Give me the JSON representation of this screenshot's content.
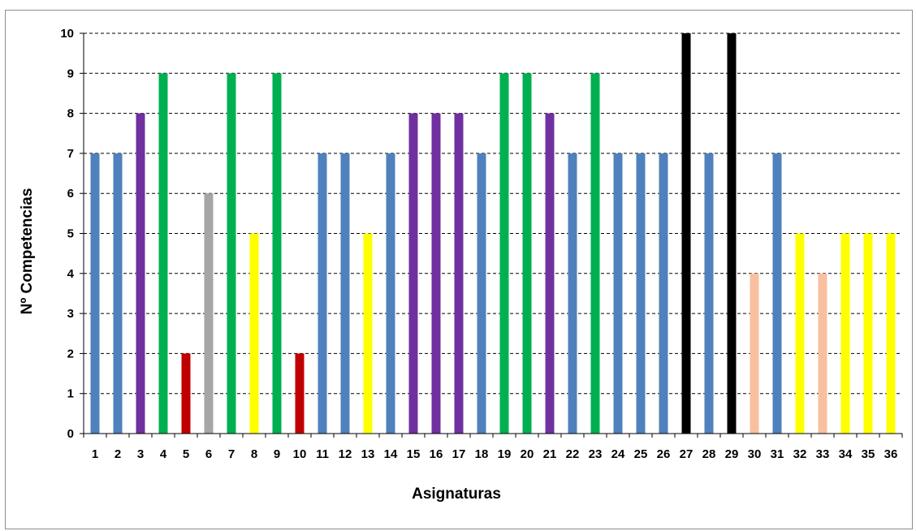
{
  "chart_data": {
    "type": "bar",
    "xlabel": "Asignaturas",
    "ylabel": "Nº Competencias",
    "ylim": [
      0,
      10
    ],
    "yticks": [
      "0",
      "1",
      "2",
      "3",
      "4",
      "5",
      "6",
      "7",
      "8",
      "9",
      "10"
    ],
    "grid": "horizontal-dashed",
    "legend": "none",
    "categories": [
      "1",
      "2",
      "3",
      "4",
      "5",
      "6",
      "7",
      "8",
      "9",
      "10",
      "11",
      "12",
      "13",
      "14",
      "15",
      "16",
      "17",
      "18",
      "19",
      "20",
      "21",
      "22",
      "23",
      "24",
      "25",
      "26",
      "27",
      "28",
      "29",
      "30",
      "31",
      "32",
      "33",
      "34",
      "35",
      "36"
    ],
    "values": [
      7,
      7,
      8,
      9,
      2,
      6,
      9,
      5,
      9,
      2,
      7,
      7,
      5,
      7,
      8,
      8,
      8,
      7,
      9,
      9,
      8,
      7,
      9,
      7,
      7,
      7,
      10,
      7,
      10,
      4,
      7,
      5,
      4,
      5,
      5,
      5
    ],
    "bar_colors": [
      "#4f81bd",
      "#4f81bd",
      "#7030a0",
      "#00b050",
      "#c00000",
      "#a6a6a6",
      "#00b050",
      "#ffff00",
      "#00b050",
      "#c00000",
      "#4f81bd",
      "#4f81bd",
      "#ffff00",
      "#4f81bd",
      "#7030a0",
      "#7030a0",
      "#7030a0",
      "#4f81bd",
      "#00b050",
      "#00b050",
      "#7030a0",
      "#4f81bd",
      "#00b050",
      "#4f81bd",
      "#4f81bd",
      "#4f81bd",
      "#000000",
      "#4f81bd",
      "#000000",
      "#f8c0a0",
      "#4f81bd",
      "#ffff00",
      "#f8c0a0",
      "#ffff00",
      "#ffff00",
      "#ffff00"
    ]
  }
}
